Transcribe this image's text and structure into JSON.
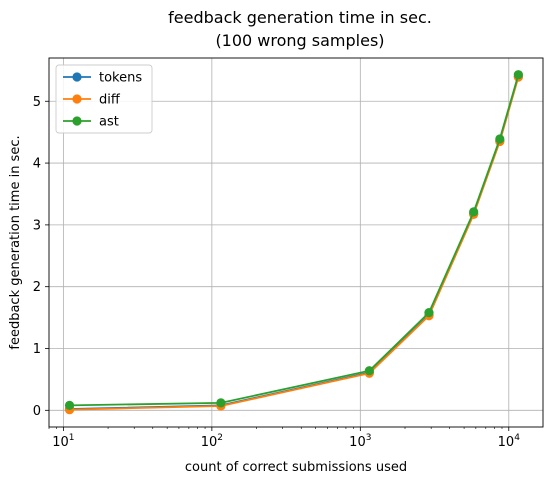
{
  "chart_data": {
    "type": "line",
    "title_lines": [
      "feedback generation time in sec.",
      "(100 wrong samples)"
    ],
    "xlabel": "count of correct submissions used",
    "ylabel": "feedback generation time in sec.",
    "x_scale": "log",
    "xlim": [
      8.0,
      17000
    ],
    "ylim": [
      -0.27,
      5.7
    ],
    "x_ticks": [
      {
        "value": 10,
        "base": "10",
        "exp": "1"
      },
      {
        "value": 100,
        "base": "10",
        "exp": "2"
      },
      {
        "value": 1000,
        "base": "10",
        "exp": "3"
      },
      {
        "value": 10000,
        "base": "10",
        "exp": "4"
      }
    ],
    "y_ticks": [
      0,
      1,
      2,
      3,
      4,
      5
    ],
    "y_tick_labels": [
      "0",
      "1",
      "2",
      "3",
      "4",
      "5"
    ],
    "grid": true,
    "legend_position": "upper-left",
    "x": [
      11,
      115,
      1150,
      2900,
      5800,
      8700,
      11600
    ],
    "series": [
      {
        "name": "tokens",
        "color": "#1f77b4",
        "values": [
          0.02,
          0.08,
          0.61,
          1.54,
          3.18,
          4.36,
          5.4
        ]
      },
      {
        "name": "diff",
        "color": "#ff7f0e",
        "values": [
          0.01,
          0.07,
          0.6,
          1.53,
          3.17,
          4.35,
          5.39
        ]
      },
      {
        "name": "ast",
        "color": "#2ca02c",
        "values": [
          0.08,
          0.12,
          0.64,
          1.58,
          3.21,
          4.39,
          5.43
        ]
      }
    ]
  }
}
